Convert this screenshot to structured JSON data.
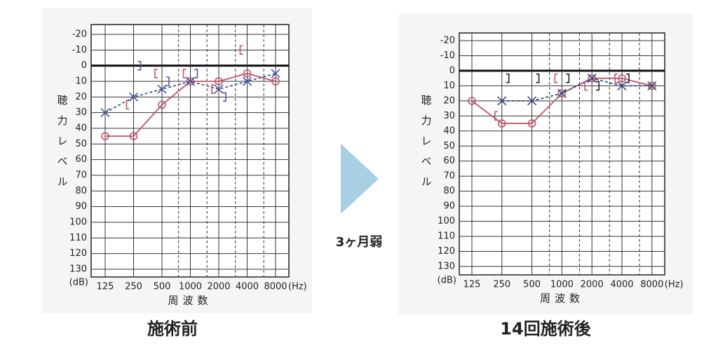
{
  "annotation": "3ヶ月弱",
  "chart_data": [
    {
      "type": "line",
      "title": "施術前",
      "ylabel": "聴力レベル",
      "xlabel": "周波数",
      "x_unit": "(Hz)",
      "y_unit": "(dB)",
      "categories": [
        "125",
        "250",
        "500",
        "1000",
        "2000",
        "4000",
        "8000"
      ],
      "ylim": [
        -20,
        130
      ],
      "y_inverted": true,
      "reference_line": 0,
      "yticks": [
        -20,
        -10,
        0,
        10,
        20,
        30,
        40,
        50,
        60,
        70,
        80,
        90,
        100,
        110,
        120,
        130
      ],
      "series": [
        {
          "color": "#c0566b",
          "marker": "circle",
          "line_style": "solid",
          "values": [
            45,
            45,
            25,
            10,
            10,
            5,
            10
          ]
        },
        {
          "color": "#4a5a9a",
          "marker": "x",
          "line_style": "dashed",
          "values": [
            30,
            20,
            15,
            10,
            15,
            10,
            5
          ]
        },
        {
          "color": "#c0566b",
          "marker": "bracket-left",
          "line_style": "none",
          "values": [
            null,
            25,
            5,
            5,
            15,
            -10,
            null
          ]
        },
        {
          "color": "#4a5a9a",
          "marker": "bracket-right",
          "line_style": "none",
          "values": [
            null,
            0,
            10,
            5,
            20,
            null,
            null
          ]
        }
      ]
    },
    {
      "type": "line",
      "title": "14回施術後",
      "ylabel": "聴力レベル",
      "xlabel": "周波数",
      "x_unit": "(Hz)",
      "y_unit": "(dB)",
      "categories": [
        "125",
        "250",
        "500",
        "1000",
        "2000",
        "4000",
        "8000"
      ],
      "ylim": [
        -20,
        130
      ],
      "y_inverted": true,
      "reference_line": 0,
      "yticks": [
        -20,
        -10,
        0,
        10,
        20,
        30,
        40,
        50,
        60,
        70,
        80,
        90,
        100,
        110,
        120,
        130
      ],
      "series": [
        {
          "color": "#c0566b",
          "marker": "circle",
          "line_style": "solid",
          "values": [
            20,
            35,
            35,
            15,
            5,
            5,
            10
          ]
        },
        {
          "color": "#3a4a80",
          "marker": "x",
          "line_style": "dashed",
          "values": [
            null,
            20,
            20,
            15,
            5,
            10,
            10
          ]
        },
        {
          "color": "#c0566b",
          "marker": "bracket-left",
          "line_style": "none",
          "values": [
            null,
            30,
            null,
            5,
            10,
            5,
            null
          ]
        },
        {
          "color": "#222222",
          "marker": "bracket-right",
          "line_style": "none",
          "values": [
            null,
            5,
            5,
            5,
            10,
            5,
            null
          ]
        }
      ]
    }
  ]
}
